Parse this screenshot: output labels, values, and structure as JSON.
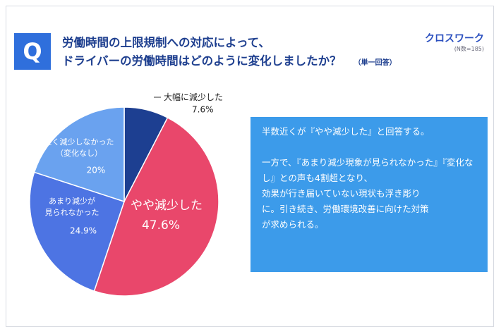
{
  "header": {
    "badge": "Q",
    "title_lines": [
      "労働時間の上限規制への対応によって、",
      "ドライバーの労働時間はどのように変化しましたか？"
    ],
    "answer_type": "（単一回答）",
    "logo": "クロスワーク",
    "sample": "(N数=185)"
  },
  "chart_data": {
    "type": "pie",
    "categories": [
      "大幅に減少した",
      "やや減少した",
      "あまり減少が\n見られなかった",
      "全く減少しなかった\n（変化なし）"
    ],
    "values": [
      7.6,
      47.6,
      24.9,
      20
    ],
    "value_labels": [
      "7.6%",
      "47.6%",
      "24.9%",
      "20%"
    ],
    "colors": [
      "#1d3f91",
      "#e9476b",
      "#4d74e3",
      "#6aa2ef"
    ]
  },
  "note": {
    "paragraphs": [
      [
        "半数近くが『やや減少した』と回答する。"
      ],
      [
        "一方で、『あまり減少現象が見られなかった』『変化なし』との声も4割超となり、",
        "効果が行き届いていない現状も浮き彫り",
        "に。引き続き、労働環境改善に向けた対策",
        "が求められる。"
      ]
    ]
  }
}
